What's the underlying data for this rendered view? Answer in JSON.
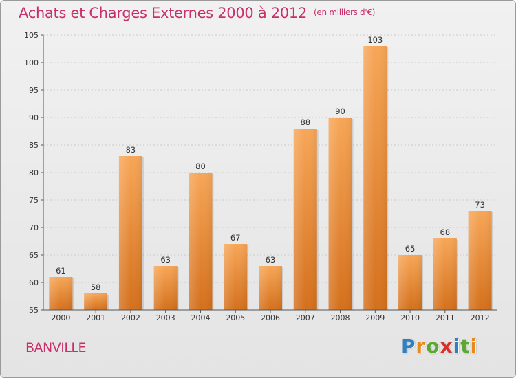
{
  "header": {
    "title": "Achats et Charges Externes 2000 à 2012",
    "unit": "(en milliers d'€)"
  },
  "footer": {
    "commune": "BANVILLE",
    "logo_text": "Proxiti",
    "logo_colors": [
      "#2f7fc1",
      "#e8891a",
      "#5aa832",
      "#d6312b",
      "#2f7fc1",
      "#5aa832",
      "#e8891a"
    ]
  },
  "colors": {
    "accent": "#c9306a",
    "bar_light": "#f7a657",
    "bar_dark": "#d4701c"
  },
  "chart_data": {
    "type": "bar",
    "title": "Achats et Charges Externes 2000 à 2012",
    "xlabel": "",
    "ylabel": "",
    "categories": [
      "2000",
      "2001",
      "2002",
      "2003",
      "2004",
      "2005",
      "2006",
      "2007",
      "2008",
      "2009",
      "2010",
      "2011",
      "2012"
    ],
    "values": [
      61,
      58,
      83,
      63,
      80,
      67,
      63,
      88,
      90,
      103,
      65,
      68,
      73
    ],
    "ylim": [
      55,
      105
    ],
    "yticks": [
      55,
      60,
      65,
      70,
      75,
      80,
      85,
      90,
      95,
      100,
      105
    ],
    "grid": true,
    "legend": "none"
  }
}
